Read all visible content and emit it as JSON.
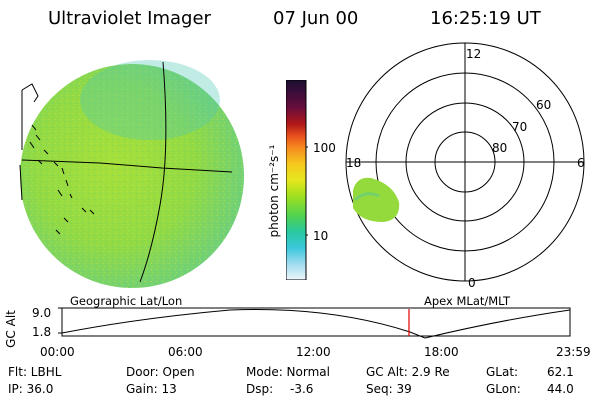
{
  "header": {
    "instrument": "Ultraviolet Imager",
    "date": "07 Jun 00",
    "time": "16:25:19 UT"
  },
  "colorbar": {
    "unit_label": "photon cm⁻²s⁻¹",
    "ticks": [
      "100",
      "10"
    ],
    "colors": [
      "#1a1030",
      "#3a0d3a",
      "#6a0d3a",
      "#8b1020",
      "#c81e1e",
      "#e8501e",
      "#f58c1e",
      "#f5b41e",
      "#e6e61e",
      "#b4e61e",
      "#82dc28",
      "#50d250",
      "#28c8a0",
      "#3cc8dc",
      "#a0dcf0",
      "#e8f4fa"
    ]
  },
  "left_panel": {
    "label": "Geographic Lat/Lon",
    "disk_color": "#9cde3a"
  },
  "right_panel": {
    "label": "Apex MLat/MLT",
    "mlt_labels": {
      "top": "12",
      "left": "18",
      "right": "6",
      "bottom": "0"
    },
    "lat_labels": [
      "60",
      "70",
      "80"
    ]
  },
  "altitude_plot": {
    "ylabel": "GC Alt",
    "yticks": [
      "9.0",
      "1.8"
    ],
    "xticks": [
      "00:00",
      "06:00",
      "12:00",
      "18:00",
      "23:59"
    ],
    "marker_color": "#e00000"
  },
  "status": {
    "filter": "Flt: LBHL",
    "ip": "IP: 36.0",
    "door": "Door: Open",
    "gain": "Gain: 13",
    "mode": "Mode: Normal",
    "dsp_label": "Dsp:",
    "dsp_value": "-3.6",
    "gc_alt": "GC Alt: 2.9 Re",
    "seq": "Seq: 39",
    "glat_label": "GLat:",
    "glat_value": "62.1",
    "glon_label": "GLon:",
    "glon_value": "44.0"
  }
}
